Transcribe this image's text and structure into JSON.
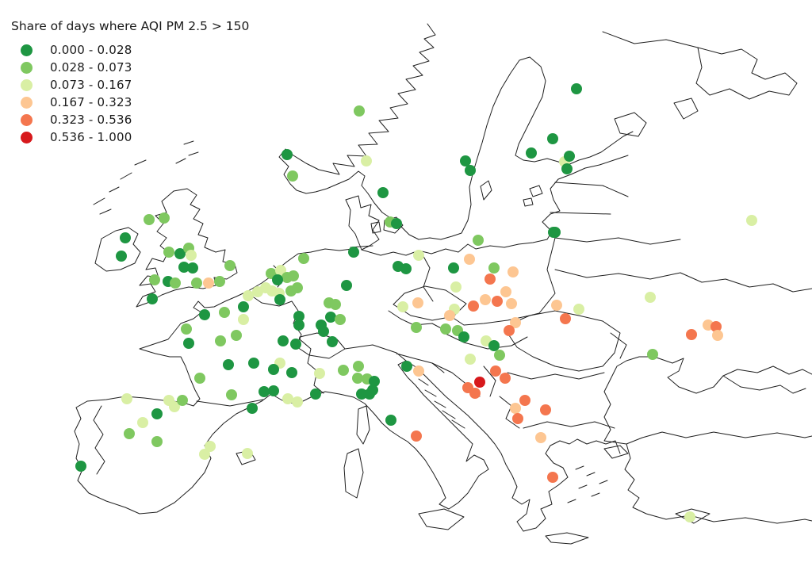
{
  "title": "Share of days where AQI PM 2.5 > 150",
  "legend": {
    "classes": [
      {
        "label": "0.000 - 0.028",
        "color": "#1e9642"
      },
      {
        "label": "0.028 - 0.073",
        "color": "#7fc860"
      },
      {
        "label": "0.073 - 0.167",
        "color": "#d9efa4"
      },
      {
        "label": "0.167 - 0.323",
        "color": "#fdc692"
      },
      {
        "label": "0.323 - 0.536",
        "color": "#f4764e"
      },
      {
        "label": "0.536 - 1.000",
        "color": "#d7191c"
      }
    ]
  },
  "chart_data": {
    "type": "scatter",
    "title": "Share of days where AQI PM 2.5 > 150",
    "legend_position": "top-left",
    "dot_radius": 7,
    "point_format": [
      "x_px",
      "y_px",
      "class_index"
    ],
    "class_ranges": [
      [
        0.0,
        0.028
      ],
      [
        0.028,
        0.073
      ],
      [
        0.073,
        0.167
      ],
      [
        0.167,
        0.323
      ],
      [
        0.323,
        0.536
      ],
      [
        0.536,
        1.0
      ]
    ],
    "points": [
      [
        188,
        277,
        1
      ],
      [
        207,
        275,
        1
      ],
      [
        158,
        300,
        0
      ],
      [
        153,
        323,
        0
      ],
      [
        213,
        318,
        1
      ],
      [
        227,
        320,
        0
      ],
      [
        238,
        313,
        1
      ],
      [
        241,
        322,
        2
      ],
      [
        232,
        337,
        0
      ],
      [
        243,
        338,
        0
      ],
      [
        290,
        335,
        1
      ],
      [
        195,
        353,
        1
      ],
      [
        212,
        355,
        0
      ],
      [
        221,
        357,
        1
      ],
      [
        248,
        357,
        1
      ],
      [
        263,
        357,
        3
      ],
      [
        277,
        355,
        1
      ],
      [
        192,
        377,
        0
      ],
      [
        453,
        140,
        1
      ],
      [
        362,
        195,
        0
      ],
      [
        369,
        222,
        1
      ],
      [
        462,
        203,
        2
      ],
      [
        483,
        243,
        0
      ],
      [
        492,
        280,
        1
      ],
      [
        500,
        282,
        0
      ],
      [
        727,
        112,
        0
      ],
      [
        697,
        175,
        0
      ],
      [
        670,
        193,
        0
      ],
      [
        712,
        204,
        2
      ],
      [
        718,
        197,
        0
      ],
      [
        587,
        203,
        0
      ],
      [
        593,
        215,
        0
      ],
      [
        715,
        213,
        0
      ],
      [
        700,
        293,
        0
      ],
      [
        948,
        278,
        2
      ],
      [
        383,
        326,
        1
      ],
      [
        342,
        345,
        1
      ],
      [
        354,
        341,
        2
      ],
      [
        362,
        350,
        1
      ],
      [
        350,
        353,
        0
      ],
      [
        370,
        348,
        1
      ],
      [
        335,
        363,
        2
      ],
      [
        343,
        367,
        2
      ],
      [
        325,
        368,
        2
      ],
      [
        352,
        370,
        2
      ],
      [
        367,
        367,
        1
      ],
      [
        375,
        363,
        1
      ],
      [
        353,
        378,
        0
      ],
      [
        307,
        387,
        0
      ],
      [
        313,
        373,
        2
      ],
      [
        377,
        399,
        0
      ],
      [
        377,
        410,
        0
      ],
      [
        446,
        318,
        0
      ],
      [
        502,
        336,
        0
      ],
      [
        512,
        339,
        0
      ],
      [
        528,
        322,
        2
      ],
      [
        437,
        360,
        0
      ],
      [
        415,
        382,
        1
      ],
      [
        423,
        384,
        1
      ],
      [
        417,
        400,
        0
      ],
      [
        429,
        403,
        1
      ],
      [
        405,
        410,
        0
      ],
      [
        408,
        418,
        0
      ],
      [
        357,
        430,
        0
      ],
      [
        373,
        434,
        0
      ],
      [
        419,
        431,
        0
      ],
      [
        403,
        471,
        2
      ],
      [
        353,
        458,
        2
      ],
      [
        258,
        397,
        0
      ],
      [
        283,
        394,
        1
      ],
      [
        307,
        403,
        2
      ],
      [
        235,
        415,
        1
      ],
      [
        238,
        433,
        0
      ],
      [
        278,
        430,
        1
      ],
      [
        298,
        423,
        1
      ],
      [
        288,
        460,
        0
      ],
      [
        320,
        458,
        0
      ],
      [
        345,
        466,
        0
      ],
      [
        368,
        470,
        0
      ],
      [
        252,
        477,
        1
      ],
      [
        292,
        498,
        1
      ],
      [
        333,
        494,
        0
      ],
      [
        345,
        493,
        0
      ],
      [
        318,
        515,
        0
      ],
      [
        363,
        503,
        2
      ],
      [
        375,
        507,
        2
      ],
      [
        398,
        497,
        0
      ],
      [
        160,
        503,
        2
      ],
      [
        213,
        505,
        2
      ],
      [
        220,
        513,
        2
      ],
      [
        230,
        505,
        1
      ],
      [
        198,
        522,
        0
      ],
      [
        180,
        533,
        2
      ],
      [
        163,
        547,
        1
      ],
      [
        198,
        557,
        1
      ],
      [
        265,
        563,
        2
      ],
      [
        258,
        573,
        2
      ],
      [
        312,
        572,
        2
      ],
      [
        102,
        588,
        0
      ],
      [
        433,
        467,
        1
      ],
      [
        452,
        462,
        1
      ],
      [
        451,
        477,
        1
      ],
      [
        463,
        478,
        1
      ],
      [
        472,
        481,
        0
      ],
      [
        470,
        492,
        0
      ],
      [
        456,
        497,
        0
      ],
      [
        466,
        497,
        0
      ],
      [
        493,
        530,
        0
      ],
      [
        525,
        550,
        4
      ],
      [
        513,
        462,
        0
      ],
      [
        528,
        468,
        3
      ],
      [
        603,
        303,
        1
      ],
      [
        698,
        293,
        0
      ],
      [
        592,
        327,
        3
      ],
      [
        572,
        338,
        0
      ],
      [
        623,
        338,
        1
      ],
      [
        647,
        343,
        3
      ],
      [
        618,
        352,
        4
      ],
      [
        638,
        368,
        3
      ],
      [
        575,
        362,
        2
      ],
      [
        612,
        378,
        3
      ],
      [
        627,
        380,
        4
      ],
      [
        645,
        383,
        3
      ],
      [
        597,
        386,
        4
      ],
      [
        573,
        390,
        2
      ],
      [
        567,
        398,
        3
      ],
      [
        508,
        387,
        2
      ],
      [
        527,
        382,
        3
      ],
      [
        525,
        413,
        1
      ],
      [
        562,
        415,
        1
      ],
      [
        577,
        417,
        1
      ],
      [
        585,
        425,
        0
      ],
      [
        650,
        407,
        3
      ],
      [
        642,
        417,
        4
      ],
      [
        613,
        430,
        2
      ],
      [
        623,
        436,
        0
      ],
      [
        630,
        448,
        1
      ],
      [
        593,
        453,
        2
      ],
      [
        625,
        468,
        4
      ],
      [
        637,
        477,
        4
      ],
      [
        605,
        482,
        5
      ],
      [
        590,
        489,
        4
      ],
      [
        599,
        496,
        4
      ],
      [
        662,
        505,
        4
      ],
      [
        650,
        515,
        3
      ],
      [
        688,
        517,
        4
      ],
      [
        653,
        528,
        4
      ],
      [
        682,
        552,
        3
      ],
      [
        697,
        602,
        4
      ],
      [
        870,
        652,
        2
      ],
      [
        702,
        385,
        3
      ],
      [
        730,
        390,
        2
      ],
      [
        713,
        402,
        4
      ],
      [
        820,
        375,
        2
      ],
      [
        872,
        422,
        4
      ],
      [
        893,
        410,
        3
      ],
      [
        903,
        412,
        4
      ],
      [
        905,
        423,
        3
      ],
      [
        823,
        447,
        1
      ]
    ]
  }
}
